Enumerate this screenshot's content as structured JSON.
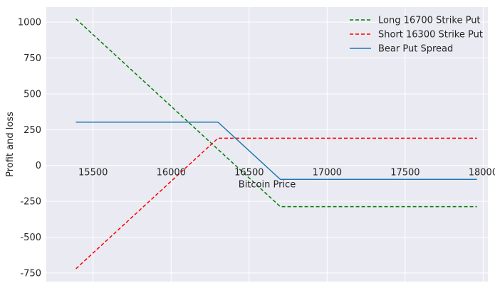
{
  "chart_data": {
    "type": "line",
    "title": "",
    "xlabel": "Bitcoin Price",
    "ylabel": "Profit and loss",
    "xlim": [
      15200,
      18030
    ],
    "ylim": [
      -810,
      1105
    ],
    "xticks": [
      15500,
      16000,
      16500,
      17000,
      17500,
      18000
    ],
    "yticks": [
      -750,
      -500,
      -250,
      0,
      250,
      500,
      750,
      1000
    ],
    "grid": true,
    "legend_position": "top-right",
    "series": [
      {
        "name": "Long 16700 Strike Put",
        "color": "#008000",
        "style": "dashed",
        "x": [
          15390,
          16700,
          17960
        ],
        "y": [
          1023,
          -287,
          -287
        ]
      },
      {
        "name": "Short 16300 Strike Put",
        "color": "#ff0000",
        "style": "dashed",
        "x": [
          15390,
          16300,
          17960
        ],
        "y": [
          -720,
          190,
          190
        ]
      },
      {
        "name": "Bear Put Spread",
        "color": "#1f77b4",
        "style": "solid",
        "x": [
          15390,
          16300,
          16700,
          17960
        ],
        "y": [
          303,
          303,
          -97,
          -97
        ]
      }
    ]
  }
}
